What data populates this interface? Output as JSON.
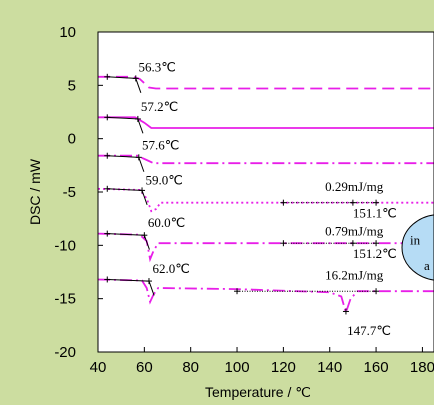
{
  "chart_data": {
    "type": "line",
    "title": "",
    "xlabel": "Temperature / ℃",
    "ylabel": "DSC / mW",
    "xlim": [
      40,
      185
    ],
    "ylim": [
      -20,
      10
    ],
    "xticks": [
      "40",
      "60",
      "80",
      "100",
      "120",
      "140",
      "160",
      "180"
    ],
    "yticks": [
      "10",
      "5",
      "0",
      "-5",
      "-10",
      "-15",
      "-20"
    ],
    "grid": false,
    "colors": {
      "plot_bg": "#ffffff",
      "page_bg": "#ccdda0",
      "curve": "#e81ee8",
      "bubble": "#b6dcf5",
      "tangent": "#000000"
    },
    "series": [
      {
        "style": "long-dash",
        "base": 5.8,
        "tail": 4.7,
        "onset": 56.3,
        "points": [
          [
            40,
            5.8
          ],
          [
            55,
            5.8
          ],
          [
            58,
            5.6
          ],
          [
            62,
            4.8
          ],
          [
            65,
            4.7
          ],
          [
            185,
            4.7
          ]
        ]
      },
      {
        "style": "solid",
        "base": 2.0,
        "tail": 1.0,
        "onset": 57.2,
        "points": [
          [
            40,
            2.0
          ],
          [
            56,
            2.0
          ],
          [
            60,
            1.5
          ],
          [
            63,
            1.0
          ],
          [
            67,
            1.0
          ],
          [
            185,
            1.0
          ]
        ]
      },
      {
        "style": "dash-dot",
        "base": -1.6,
        "tail": -2.3,
        "onset": 57.6,
        "points": [
          [
            40,
            -1.6
          ],
          [
            57,
            -1.6
          ],
          [
            61,
            -2.0
          ],
          [
            64,
            -2.3
          ],
          [
            185,
            -2.3
          ]
        ]
      },
      {
        "style": "dotted",
        "base": -4.7,
        "tail": -6.0,
        "onset": 59.0,
        "points": [
          [
            40,
            -4.7
          ],
          [
            58,
            -4.8
          ],
          [
            61,
            -5.6
          ],
          [
            63,
            -6.8
          ],
          [
            65,
            -6.6
          ],
          [
            67,
            -6.0
          ],
          [
            185,
            -6.0
          ]
        ]
      },
      {
        "style": "dash-dot",
        "base": -8.9,
        "tail": -9.8,
        "onset": 60.0,
        "points": [
          [
            40,
            -8.9
          ],
          [
            58,
            -9.0
          ],
          [
            61,
            -9.6
          ],
          [
            62.5,
            -11.3
          ],
          [
            64,
            -10.5
          ],
          [
            66,
            -9.8
          ],
          [
            185,
            -9.8
          ]
        ]
      },
      {
        "style": "dash-dot",
        "base": -13.2,
        "tail": -14.3,
        "onset": 62.0,
        "points": [
          [
            40,
            -13.2
          ],
          [
            59,
            -13.3
          ],
          [
            61,
            -14.0
          ],
          [
            62.5,
            -15.3
          ],
          [
            64,
            -14.6
          ],
          [
            66,
            -14.0
          ],
          [
            100,
            -14.1
          ],
          [
            140,
            -14.4
          ],
          [
            145,
            -14.8
          ],
          [
            147,
            -16.3
          ],
          [
            149,
            -15.0
          ],
          [
            152,
            -14.3
          ],
          [
            185,
            -14.3
          ]
        ]
      }
    ],
    "annotations": {
      "onsets": [
        {
          "label": "56.3℃",
          "x": 57.5,
          "y": 6.3
        },
        {
          "label": "57.2℃",
          "x": 58.5,
          "y": 2.6
        },
        {
          "label": "57.6℃",
          "x": 59.0,
          "y": -1.0
        },
        {
          "label": "59.0℃",
          "x": 60.5,
          "y": -4.3
        },
        {
          "label": "60.0℃",
          "x": 61.5,
          "y": -8.3
        },
        {
          "label": "62.0℃",
          "x": 63.5,
          "y": -12.6
        }
      ],
      "enthalpies": [
        {
          "label": "0.29mJ/mg",
          "x": 138,
          "y": -4.9
        },
        {
          "label": "0.79mJ/mg",
          "x": 138,
          "y": -9.1
        },
        {
          "label": "16.2mJ/mg",
          "x": 138,
          "y": -13.2
        }
      ],
      "peak_temps": [
        {
          "label": "151.1℃",
          "x": 150,
          "y": -7.4
        },
        {
          "label": "151.2℃",
          "x": 150,
          "y": -11.2
        },
        {
          "label": "147.7℃",
          "x": 147.5,
          "y": -18.4
        }
      ],
      "callout": {
        "line1": "in",
        "line2": "a"
      }
    }
  }
}
